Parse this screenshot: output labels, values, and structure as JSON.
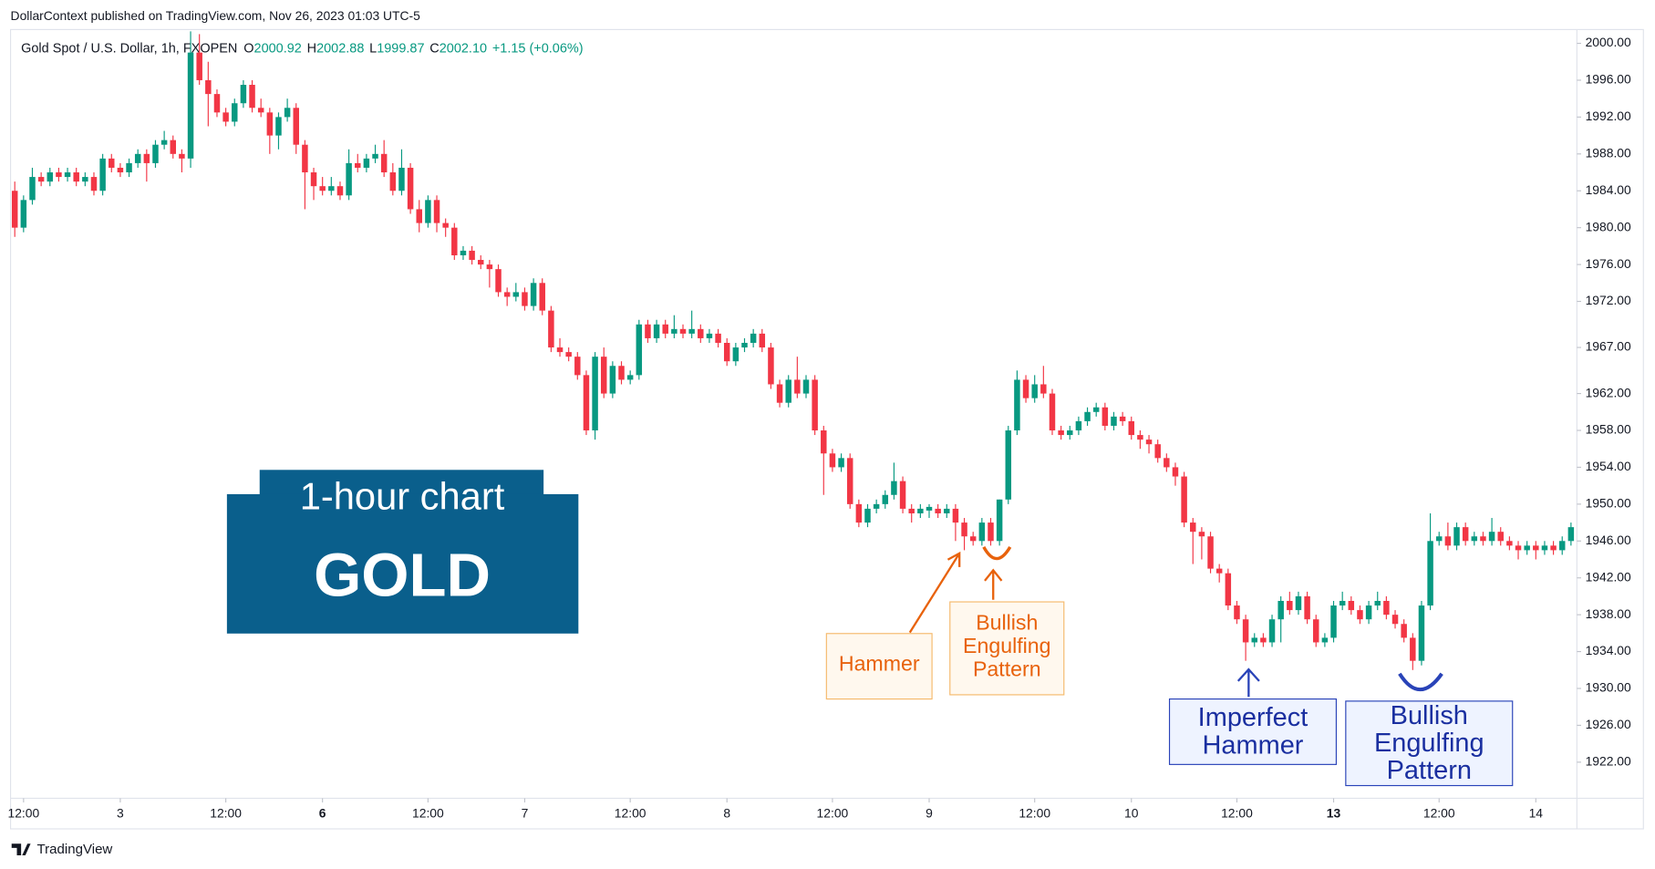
{
  "header": {
    "published": "DollarContext published on TradingView.com, Nov 26, 2023 01:03 UTC-5"
  },
  "chart_data": {
    "type": "candlestick",
    "symbol": "Gold Spot / U.S. Dollar, 1h, FXOPEN",
    "legend": [
      {
        "key": "O",
        "value": "2000.92"
      },
      {
        "key": "H",
        "value": "2002.88"
      },
      {
        "key": "L",
        "value": "1999.87"
      },
      {
        "key": "C",
        "value": "2002.10"
      }
    ],
    "change": "+1.15 (+0.06%)",
    "up_color": "#089981",
    "down_color": "#f23645",
    "ylim": [
      2001.3,
      1918.2
    ],
    "yticks": [
      {
        "value": 2000,
        "label": "2000.00"
      },
      {
        "value": 1996,
        "label": "1996.00"
      },
      {
        "value": 1992,
        "label": "1992.00"
      },
      {
        "value": 1988,
        "label": "1988.00"
      },
      {
        "value": 1984,
        "label": "1984.00"
      },
      {
        "value": 1980,
        "label": "1980.00"
      },
      {
        "value": 1976,
        "label": "1976.00"
      },
      {
        "value": 1972,
        "label": "1972.00"
      },
      {
        "value": 1967,
        "label": "1967.00"
      },
      {
        "value": 1962,
        "label": "1962.00"
      },
      {
        "value": 1958,
        "label": "1958.00"
      },
      {
        "value": 1954,
        "label": "1954.00"
      },
      {
        "value": 1950,
        "label": "1950.00"
      },
      {
        "value": 1946,
        "label": "1946.00"
      },
      {
        "value": 1942,
        "label": "1942.00"
      },
      {
        "value": 1938,
        "label": "1938.00"
      },
      {
        "value": 1934,
        "label": "1934.00"
      },
      {
        "value": 1930,
        "label": "1930.00"
      },
      {
        "value": 1926,
        "label": "1926.00"
      },
      {
        "value": 1922,
        "label": "1922.00"
      }
    ],
    "xticks": [
      {
        "value": 1,
        "label": "12:00"
      },
      {
        "value": 12,
        "label": "3"
      },
      {
        "value": 24,
        "label": "12:00"
      },
      {
        "value": 35,
        "label": "6",
        "bold": true
      },
      {
        "value": 47,
        "label": "12:00"
      },
      {
        "value": 58,
        "label": "7"
      },
      {
        "value": 70,
        "label": "12:00"
      },
      {
        "value": 81,
        "label": "8"
      },
      {
        "value": 93,
        "label": "12:00"
      },
      {
        "value": 104,
        "label": "9"
      },
      {
        "value": 116,
        "label": "12:00"
      },
      {
        "value": 127,
        "label": "10"
      },
      {
        "value": 139,
        "label": "12:00"
      },
      {
        "value": 150,
        "label": "13",
        "bold": true
      },
      {
        "value": 162,
        "label": "12:00"
      },
      {
        "value": 173,
        "label": "14"
      }
    ],
    "candles": [
      [
        1984,
        1985,
        1979,
        1980
      ],
      [
        1980,
        1983.5,
        1979.5,
        1983
      ],
      [
        1983,
        1986.5,
        1982.5,
        1985.5
      ],
      [
        1985.5,
        1986,
        1984.5,
        1985
      ],
      [
        1985,
        1986.5,
        1984.5,
        1986
      ],
      [
        1986,
        1986.5,
        1985,
        1985.5
      ],
      [
        1985.5,
        1986.5,
        1985,
        1986
      ],
      [
        1986,
        1986.5,
        1984.5,
        1985
      ],
      [
        1985,
        1986,
        1984.5,
        1985.5
      ],
      [
        1985.5,
        1986,
        1983.5,
        1984
      ],
      [
        1984,
        1988,
        1983.5,
        1987.5
      ],
      [
        1987.5,
        1988,
        1986,
        1986.5
      ],
      [
        1986.5,
        1987,
        1985.5,
        1986
      ],
      [
        1986,
        1987.5,
        1985.5,
        1987
      ],
      [
        1987,
        1988.5,
        1986.5,
        1988
      ],
      [
        1988,
        1988.5,
        1985,
        1987
      ],
      [
        1987,
        1989.5,
        1986.5,
        1989
      ],
      [
        1989,
        1990.5,
        1988.5,
        1989.5
      ],
      [
        1989.5,
        1990,
        1987.5,
        1988
      ],
      [
        1988,
        1988.5,
        1986,
        1987.5
      ],
      [
        1987.5,
        2001.3,
        1986.5,
        1999
      ],
      [
        1999,
        2001,
        1995.5,
        1996
      ],
      [
        1996,
        1998,
        1991,
        1994.5
      ],
      [
        1994.5,
        1995,
        1992,
        1992.5
      ],
      [
        1992.5,
        1993,
        1991,
        1991.5
      ],
      [
        1991.5,
        1994,
        1991,
        1993.5
      ],
      [
        1993.5,
        1996,
        1993,
        1995.5
      ],
      [
        1995.5,
        1996,
        1992.5,
        1993
      ],
      [
        1993,
        1994,
        1992,
        1992.5
      ],
      [
        1992.5,
        1993,
        1988,
        1990
      ],
      [
        1990,
        1992.5,
        1988.5,
        1992
      ],
      [
        1992,
        1994,
        1991.5,
        1993
      ],
      [
        1993,
        1993.5,
        1988,
        1989
      ],
      [
        1989,
        1989.5,
        1982,
        1986
      ],
      [
        1986,
        1986.5,
        1983,
        1984.5
      ],
      [
        1984.5,
        1985.5,
        1983.5,
        1984
      ],
      [
        1984,
        1985.5,
        1983.5,
        1984.5
      ],
      [
        1984.5,
        1985,
        1983,
        1983.5
      ],
      [
        1983.5,
        1988.5,
        1983,
        1987
      ],
      [
        1987,
        1988,
        1986,
        1986.5
      ],
      [
        1986.5,
        1988,
        1986,
        1987.5
      ],
      [
        1987.5,
        1989,
        1987,
        1988
      ],
      [
        1988,
        1989.5,
        1985.5,
        1986
      ],
      [
        1986,
        1987,
        1983.5,
        1984
      ],
      [
        1984,
        1988.5,
        1983.5,
        1986.5
      ],
      [
        1986.5,
        1987,
        1981.5,
        1982
      ],
      [
        1982,
        1983,
        1979.5,
        1980.5
      ],
      [
        1980.5,
        1983.5,
        1980,
        1983
      ],
      [
        1983,
        1983.5,
        1979.5,
        1980.5
      ],
      [
        1980.5,
        1981,
        1979,
        1980
      ],
      [
        1980,
        1980.5,
        1976.5,
        1977
      ],
      [
        1977,
        1978,
        1976.5,
        1977.5
      ],
      [
        1977.5,
        1978,
        1976,
        1976.5
      ],
      [
        1976.5,
        1977,
        1975.5,
        1976
      ],
      [
        1976,
        1976.5,
        1973.5,
        1975.5
      ],
      [
        1975.5,
        1976,
        1972.5,
        1973
      ],
      [
        1973,
        1973.5,
        1971.5,
        1972.5
      ],
      [
        1972.5,
        1974,
        1972,
        1973
      ],
      [
        1973,
        1973.5,
        1971,
        1971.5
      ],
      [
        1971.5,
        1974.5,
        1971,
        1974
      ],
      [
        1974,
        1974.5,
        1970.5,
        1971
      ],
      [
        1971,
        1971.5,
        1966.5,
        1967
      ],
      [
        1967,
        1968,
        1966,
        1966.5
      ],
      [
        1966.5,
        1967,
        1965.5,
        1966
      ],
      [
        1966,
        1966.5,
        1963.5,
        1964
      ],
      [
        1964,
        1964.5,
        1957.5,
        1958
      ],
      [
        1958,
        1966.5,
        1957,
        1966
      ],
      [
        1966,
        1967,
        1961.5,
        1962
      ],
      [
        1962,
        1965.5,
        1961.5,
        1965
      ],
      [
        1965,
        1965.5,
        1963,
        1963.5
      ],
      [
        1963.5,
        1964.5,
        1963,
        1964
      ],
      [
        1964,
        1970,
        1963.5,
        1969.5
      ],
      [
        1969.5,
        1970,
        1967.5,
        1968
      ],
      [
        1968,
        1970,
        1967.5,
        1969.5
      ],
      [
        1969.5,
        1970,
        1968,
        1968.5
      ],
      [
        1968.5,
        1970.5,
        1968,
        1969
      ],
      [
        1969,
        1969.5,
        1968,
        1968.5
      ],
      [
        1968.5,
        1971,
        1968,
        1969
      ],
      [
        1969,
        1969.5,
        1967.5,
        1968
      ],
      [
        1968,
        1969,
        1967.5,
        1968.5
      ],
      [
        1968.5,
        1969,
        1967,
        1967.5
      ],
      [
        1967.5,
        1968,
        1965,
        1965.5
      ],
      [
        1965.5,
        1967.5,
        1965,
        1967
      ],
      [
        1967,
        1968,
        1966.5,
        1967.5
      ],
      [
        1967.5,
        1969,
        1967,
        1968.5
      ],
      [
        1968.5,
        1969,
        1966.5,
        1967
      ],
      [
        1967,
        1967.5,
        1962.5,
        1963
      ],
      [
        1963,
        1963.5,
        1960.5,
        1961
      ],
      [
        1961,
        1964,
        1960.5,
        1963.5
      ],
      [
        1963.5,
        1966,
        1961.5,
        1962
      ],
      [
        1962,
        1964,
        1961.5,
        1963.5
      ],
      [
        1963.5,
        1964,
        1957.5,
        1958
      ],
      [
        1958,
        1958.5,
        1951,
        1955.5
      ],
      [
        1955.5,
        1956,
        1953.5,
        1954
      ],
      [
        1954,
        1955.5,
        1953.5,
        1955
      ],
      [
        1955,
        1955.5,
        1949.5,
        1950
      ],
      [
        1950,
        1950.5,
        1947.5,
        1948
      ],
      [
        1948,
        1950,
        1947.5,
        1949.5
      ],
      [
        1949.5,
        1950.5,
        1949,
        1950
      ],
      [
        1950,
        1951.5,
        1949.5,
        1951
      ],
      [
        1951,
        1954.5,
        1950.5,
        1952.5
      ],
      [
        1952.5,
        1953,
        1949,
        1949.5
      ],
      [
        1949.5,
        1950,
        1948,
        1949
      ],
      [
        1949,
        1950,
        1948.5,
        1949.5
      ],
      [
        1949.3,
        1950,
        1948.5,
        1949.7
      ],
      [
        1949.5,
        1950,
        1948.5,
        1949
      ],
      [
        1949,
        1950,
        1948.5,
        1949.5
      ],
      [
        1949.5,
        1950,
        1946,
        1948
      ],
      [
        1948,
        1948.5,
        1945,
        1946.5
      ],
      [
        1946.5,
        1947,
        1945.5,
        1946
      ],
      [
        1946,
        1948.5,
        1945.5,
        1948
      ],
      [
        1948,
        1948.5,
        1945.5,
        1946
      ],
      [
        1946,
        1950.5,
        1945.5,
        1950.5
      ],
      [
        1950.5,
        1958.5,
        1950,
        1958
      ],
      [
        1958,
        1964.5,
        1957.5,
        1963.5
      ],
      [
        1963.5,
        1964,
        1961,
        1961.5
      ],
      [
        1961.5,
        1964,
        1961,
        1963
      ],
      [
        1963,
        1965,
        1961.5,
        1962
      ],
      [
        1962,
        1962.5,
        1957.5,
        1958
      ],
      [
        1958,
        1958.5,
        1957,
        1957.5
      ],
      [
        1957.5,
        1958.5,
        1957,
        1958
      ],
      [
        1958,
        1959.5,
        1957.5,
        1959
      ],
      [
        1959,
        1960.5,
        1958.5,
        1960
      ],
      [
        1960,
        1961,
        1959.5,
        1960.5
      ],
      [
        1960.5,
        1961,
        1958,
        1958.5
      ],
      [
        1958.5,
        1960,
        1958,
        1959.5
      ],
      [
        1959.5,
        1960,
        1958.5,
        1959
      ],
      [
        1959,
        1959.5,
        1957,
        1957.5
      ],
      [
        1957.5,
        1958,
        1956,
        1957
      ],
      [
        1957,
        1957.5,
        1955.5,
        1956.5
      ],
      [
        1956.5,
        1957,
        1954.5,
        1955
      ],
      [
        1955,
        1955.5,
        1953.5,
        1954
      ],
      [
        1954,
        1954.5,
        1952,
        1953
      ],
      [
        1953,
        1953.5,
        1947.5,
        1948
      ],
      [
        1948,
        1948.5,
        1943.5,
        1947
      ],
      [
        1947,
        1947.5,
        1944,
        1946.5
      ],
      [
        1946.5,
        1947,
        1942.5,
        1943
      ],
      [
        1943,
        1943.5,
        1941.5,
        1942.5
      ],
      [
        1942.5,
        1943,
        1938.5,
        1939
      ],
      [
        1939,
        1939.5,
        1937,
        1937.5
      ],
      [
        1937.5,
        1938,
        1933,
        1935
      ],
      [
        1935,
        1936,
        1934.5,
        1935.5
      ],
      [
        1935.5,
        1936,
        1934.5,
        1935
      ],
      [
        1935,
        1938,
        1934.5,
        1937.5
      ],
      [
        1937.5,
        1940,
        1935,
        1939.5
      ],
      [
        1939.5,
        1940.5,
        1938,
        1938.5
      ],
      [
        1938.5,
        1940.5,
        1938,
        1940
      ],
      [
        1940,
        1940.5,
        1937,
        1937.5
      ],
      [
        1937.5,
        1938,
        1934.5,
        1935
      ],
      [
        1935,
        1936,
        1934.5,
        1935.5
      ],
      [
        1935.5,
        1939.5,
        1935,
        1939
      ],
      [
        1939,
        1940.5,
        1938.5,
        1939.5
      ],
      [
        1939.5,
        1940,
        1938,
        1938.5
      ],
      [
        1938.5,
        1939,
        1937,
        1937.5
      ],
      [
        1937.5,
        1939.5,
        1937,
        1939
      ],
      [
        1939,
        1940.5,
        1938.5,
        1939.5
      ],
      [
        1939.5,
        1940,
        1937.5,
        1938
      ],
      [
        1938,
        1938.5,
        1936.5,
        1937
      ],
      [
        1937,
        1937.5,
        1935,
        1935.5
      ],
      [
        1935.5,
        1936,
        1932,
        1933
      ],
      [
        1933,
        1939.5,
        1932.5,
        1939
      ],
      [
        1939,
        1949,
        1938.5,
        1946
      ],
      [
        1946,
        1947,
        1945.5,
        1946.5
      ],
      [
        1946.5,
        1948,
        1945,
        1945.5
      ],
      [
        1945.5,
        1948,
        1945,
        1947.5
      ],
      [
        1947.5,
        1948,
        1945.5,
        1946
      ],
      [
        1946,
        1947,
        1945.5,
        1946.5
      ],
      [
        1946.5,
        1947,
        1945.5,
        1946
      ],
      [
        1946,
        1948.5,
        1945.5,
        1947
      ],
      [
        1947,
        1947.5,
        1945.5,
        1946
      ],
      [
        1946,
        1946.5,
        1945,
        1945.5
      ],
      [
        1945.5,
        1946,
        1944,
        1945
      ],
      [
        1945,
        1946,
        1944.5,
        1945.5
      ],
      [
        1945.5,
        1946,
        1944,
        1945
      ],
      [
        1945,
        1946,
        1944.5,
        1945.5
      ],
      [
        1945.5,
        1946,
        1944.5,
        1945
      ],
      [
        1945,
        1946.5,
        1944.5,
        1946
      ],
      [
        1946,
        1948,
        1945.5,
        1947.5
      ]
    ],
    "annotations": {
      "subtitle": "1-hour chart",
      "title": "GOLD",
      "hammer": [
        "Hammer"
      ],
      "engulfing_1": [
        "Bullish",
        "Engulfing",
        "Pattern"
      ],
      "imperfect_hammer": [
        "Imperfect",
        "Hammer"
      ],
      "engulfing_2": [
        "Bullish",
        "Engulfing",
        "Pattern"
      ]
    }
  },
  "footer": {
    "brand": "TradingView"
  }
}
